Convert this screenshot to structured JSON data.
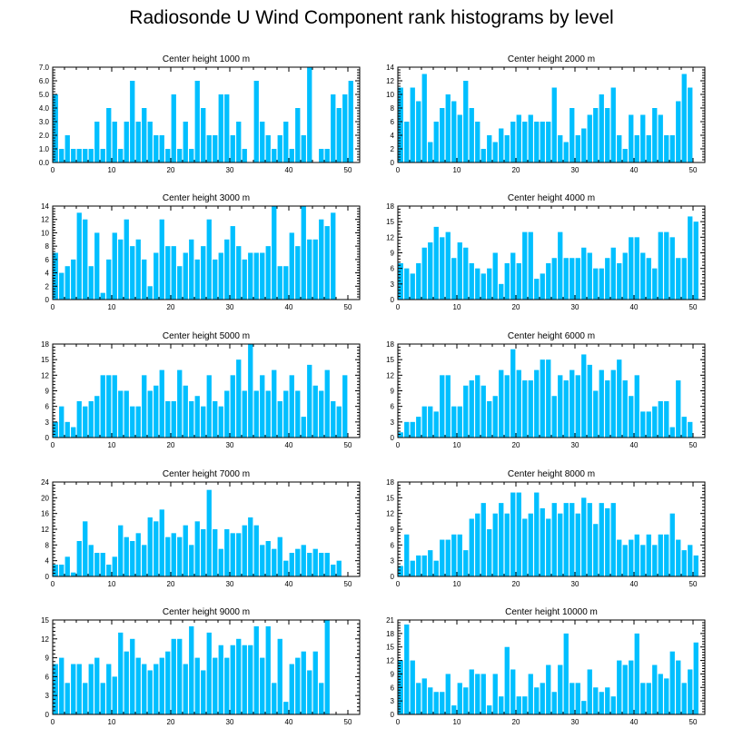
{
  "title": "Radiosonde U Wind Component rank histograms by level",
  "bar_color": "#00BFFF",
  "chart_data": [
    {
      "type": "bar",
      "title": "Center height 1000 m",
      "xlim": [
        0,
        52
      ],
      "ylim": [
        0,
        7
      ],
      "xticks": [
        0,
        10,
        20,
        30,
        40,
        50
      ],
      "yticks": [
        "0.0",
        "1.0",
        "2.0",
        "3.0",
        "4.0",
        "5.0",
        "6.0",
        "7.0"
      ],
      "values": [
        5,
        1,
        2,
        1,
        1,
        1,
        1,
        3,
        1,
        4,
        3,
        1,
        3,
        6,
        3,
        4,
        3,
        2,
        2,
        1,
        5,
        1,
        3,
        1,
        6,
        4,
        2,
        2,
        5,
        5,
        2,
        3,
        1,
        0,
        6,
        3,
        2,
        1,
        2,
        3,
        1,
        4,
        2,
        7,
        0,
        1,
        1,
        5,
        4,
        5,
        6
      ]
    },
    {
      "type": "bar",
      "title": "Center height 2000 m",
      "xlim": [
        0,
        52
      ],
      "ylim": [
        0,
        14
      ],
      "xticks": [
        0,
        10,
        20,
        30,
        40,
        50
      ],
      "yticks": [
        "0",
        "2",
        "4",
        "6",
        "8",
        "10",
        "12",
        "14"
      ],
      "values": [
        11,
        6,
        11,
        9,
        13,
        3,
        6,
        8,
        10,
        9,
        7,
        12,
        8,
        6,
        2,
        4,
        3,
        5,
        4,
        6,
        7,
        6,
        7,
        6,
        6,
        6,
        11,
        4,
        3,
        8,
        4,
        5,
        7,
        8,
        10,
        8,
        11,
        4,
        2,
        7,
        4,
        7,
        4,
        8,
        7,
        4,
        4,
        9,
        13,
        11
      ]
    },
    {
      "type": "bar",
      "title": "Center height 3000 m",
      "xlim": [
        0,
        52
      ],
      "ylim": [
        0,
        14
      ],
      "xticks": [
        0,
        10,
        20,
        30,
        40,
        50
      ],
      "yticks": [
        "0",
        "2",
        "4",
        "6",
        "8",
        "10",
        "12",
        "14"
      ],
      "values": [
        7,
        4,
        5,
        6,
        13,
        12,
        5,
        10,
        1,
        6,
        10,
        9,
        12,
        8,
        9,
        6,
        2,
        7,
        12,
        8,
        8,
        5,
        7,
        9,
        6,
        8,
        12,
        6,
        7,
        9,
        11,
        8,
        6,
        7,
        7,
        7,
        8,
        14,
        5,
        5,
        10,
        8,
        14,
        9,
        9,
        12,
        11,
        13
      ]
    },
    {
      "type": "bar",
      "title": "Center height 4000 m",
      "xlim": [
        0,
        52
      ],
      "ylim": [
        0,
        18
      ],
      "xticks": [
        0,
        10,
        20,
        30,
        40,
        50
      ],
      "yticks": [
        "0",
        "3",
        "6",
        "9",
        "12",
        "15",
        "18"
      ],
      "values": [
        7,
        6,
        5,
        7,
        10,
        11,
        14,
        12,
        13,
        8,
        11,
        10,
        7,
        6,
        5,
        6,
        9,
        3,
        7,
        9,
        7,
        13,
        13,
        4,
        5,
        7,
        8,
        13,
        8,
        8,
        8,
        10,
        9,
        6,
        6,
        8,
        10,
        7,
        9,
        12,
        12,
        9,
        8,
        6,
        13,
        13,
        12,
        8,
        8,
        16,
        15
      ]
    },
    {
      "type": "bar",
      "title": "Center height 5000 m",
      "xlim": [
        0,
        52
      ],
      "ylim": [
        0,
        18
      ],
      "xticks": [
        0,
        10,
        20,
        30,
        40,
        50
      ],
      "yticks": [
        "0",
        "3",
        "6",
        "9",
        "12",
        "15",
        "18"
      ],
      "values": [
        3,
        6,
        3,
        2,
        7,
        6,
        7,
        8,
        12,
        12,
        12,
        9,
        9,
        6,
        6,
        12,
        9,
        10,
        13,
        7,
        7,
        13,
        10,
        7,
        8,
        6,
        12,
        7,
        6,
        9,
        12,
        15,
        9,
        18,
        9,
        12,
        9,
        13,
        7,
        9,
        12,
        9,
        4,
        14,
        10,
        9,
        13,
        7,
        6,
        12
      ]
    },
    {
      "type": "bar",
      "title": "Center height 6000 m",
      "xlim": [
        0,
        52
      ],
      "ylim": [
        0,
        18
      ],
      "xticks": [
        0,
        10,
        20,
        30,
        40,
        50
      ],
      "yticks": [
        "0",
        "3",
        "6",
        "9",
        "12",
        "15",
        "18"
      ],
      "values": [
        1,
        3,
        3,
        4,
        6,
        6,
        5,
        12,
        12,
        6,
        6,
        10,
        11,
        12,
        10,
        7,
        8,
        13,
        12,
        17,
        13,
        11,
        11,
        13,
        15,
        15,
        8,
        12,
        11,
        13,
        12,
        16,
        14,
        9,
        13,
        11,
        13,
        15,
        11,
        8,
        12,
        5,
        5,
        6,
        7,
        7,
        2,
        11,
        4,
        3
      ]
    },
    {
      "type": "bar",
      "title": "Center height 7000 m",
      "xlim": [
        0,
        52
      ],
      "ylim": [
        0,
        24
      ],
      "xticks": [
        0,
        10,
        20,
        30,
        40,
        50
      ],
      "yticks": [
        "0",
        "4",
        "8",
        "12",
        "16",
        "20",
        "24"
      ],
      "values": [
        3,
        3,
        5,
        1,
        9,
        14,
        8,
        6,
        6,
        3,
        5,
        13,
        10,
        9,
        11,
        8,
        15,
        14,
        17,
        10,
        11,
        10,
        13,
        8,
        14,
        12,
        22,
        12,
        7,
        12,
        11,
        11,
        13,
        15,
        13,
        8,
        9,
        7,
        10,
        4,
        6,
        7,
        8,
        6,
        7,
        6,
        6,
        3,
        4
      ]
    },
    {
      "type": "bar",
      "title": "Center height 8000 m",
      "xlim": [
        0,
        52
      ],
      "ylim": [
        0,
        18
      ],
      "xticks": [
        0,
        10,
        20,
        30,
        40,
        50
      ],
      "yticks": [
        "0",
        "3",
        "6",
        "9",
        "12",
        "15",
        "18"
      ],
      "values": [
        2,
        8,
        3,
        4,
        4,
        5,
        3,
        7,
        7,
        8,
        8,
        5,
        11,
        12,
        14,
        9,
        12,
        14,
        12,
        16,
        16,
        11,
        12,
        16,
        13,
        11,
        14,
        12,
        14,
        14,
        12,
        15,
        14,
        10,
        14,
        13,
        14,
        7,
        6,
        7,
        8,
        6,
        8,
        6,
        8,
        8,
        12,
        7,
        5,
        6,
        4
      ]
    },
    {
      "type": "bar",
      "title": "Center height 9000 m",
      "xlim": [
        0,
        52
      ],
      "ylim": [
        0,
        15
      ],
      "xticks": [
        0,
        10,
        20,
        30,
        40,
        50
      ],
      "yticks": [
        "0",
        "3",
        "6",
        "9",
        "12",
        "15"
      ],
      "values": [
        8,
        9,
        5,
        8,
        8,
        5,
        8,
        9,
        5,
        8,
        6,
        13,
        10,
        12,
        9,
        8,
        7,
        8,
        9,
        10,
        12,
        12,
        8,
        14,
        9,
        7,
        13,
        9,
        11,
        9,
        11,
        12,
        11,
        11,
        14,
        9,
        14,
        5,
        12,
        2,
        8,
        9,
        10,
        7,
        10,
        5,
        15
      ]
    },
    {
      "type": "bar",
      "title": "Center height 10000 m",
      "xlim": [
        0,
        52
      ],
      "ylim": [
        0,
        21
      ],
      "xticks": [
        0,
        10,
        20,
        30,
        40,
        50
      ],
      "yticks": [
        "0",
        "3",
        "6",
        "9",
        "12",
        "15",
        "18",
        "21"
      ],
      "values": [
        12,
        20,
        12,
        7,
        8,
        6,
        5,
        5,
        9,
        2,
        7,
        6,
        10,
        9,
        9,
        2,
        9,
        4,
        15,
        10,
        4,
        4,
        9,
        6,
        7,
        11,
        5,
        11,
        18,
        7,
        7,
        3,
        10,
        6,
        5,
        6,
        4,
        12,
        11,
        12,
        18,
        7,
        7,
        11,
        9,
        8,
        14,
        12,
        7,
        10,
        16
      ]
    }
  ]
}
